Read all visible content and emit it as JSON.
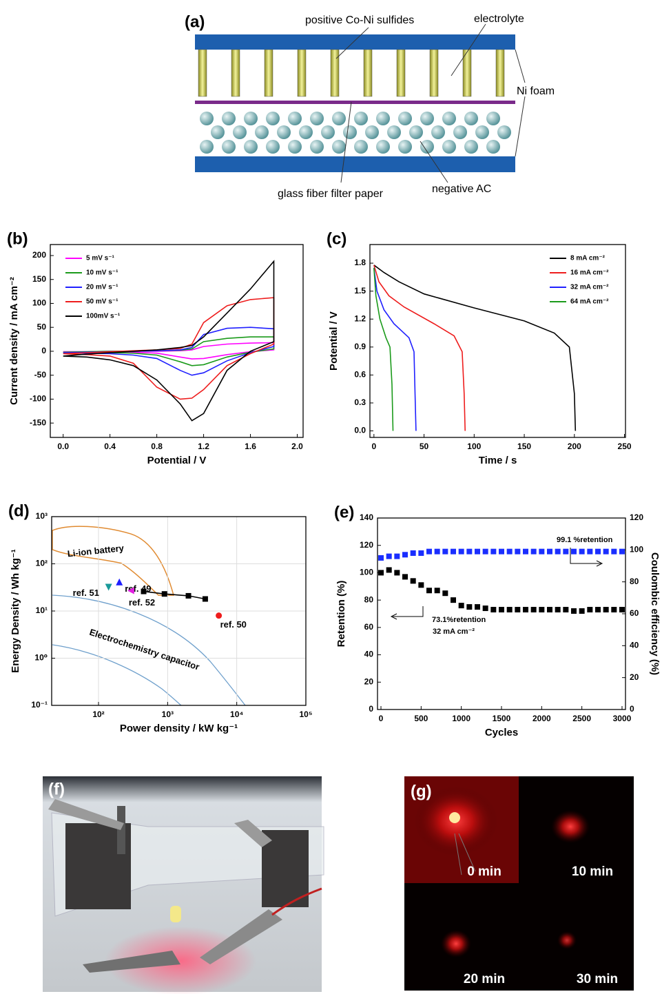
{
  "diagram": {
    "label": "(a)",
    "annotations": [
      "positive Co-Ni sulfides",
      "electrolyte",
      "Ni foam",
      "glass fiber filter paper",
      "negative AC"
    ]
  },
  "chart_data": [
    {
      "type": "line",
      "label": "(b)",
      "xlabel": "Potential / V",
      "ylabel": "Current density / mA cm⁻²",
      "x": [
        0,
        0.2,
        0.4,
        0.6,
        0.8,
        1.0,
        1.1,
        1.2,
        1.4,
        1.6,
        1.8,
        1.8,
        1.6,
        1.4,
        1.2,
        1.1,
        1.0,
        0.8,
        0.6,
        0.4,
        0.2,
        0
      ],
      "xlim": [
        -0.11,
        2.05
      ],
      "xticks": [
        {
          "value": 0,
          "label": "0.0"
        },
        0.4,
        0.8,
        1.2,
        1.6,
        {
          "value": 2,
          "label": "2.0"
        }
      ],
      "ylim": [
        -180,
        223
      ],
      "yticks": [
        -150,
        -100,
        -50,
        0,
        50,
        100,
        150,
        200
      ],
      "legend": "upper left",
      "series": [
        {
          "name": "5  mV s⁻¹",
          "color": "#ff00ff",
          "values": [
            -1,
            -1,
            0,
            0,
            0,
            1,
            3,
            10,
            15,
            17,
            18,
            3,
            -1,
            -7,
            -15,
            -16,
            -12,
            -4,
            -2,
            -1,
            -1,
            -1
          ]
        },
        {
          "name": "10 mV s⁻¹",
          "color": "#1a9a1a",
          "values": [
            -2,
            -1,
            0,
            0,
            1,
            2,
            5,
            20,
            27,
            30,
            30,
            5,
            -2,
            -12,
            -28,
            -30,
            -22,
            -8,
            -4,
            -3,
            -2,
            -2
          ]
        },
        {
          "name": "20 mV s⁻¹",
          "color": "#1f1fff",
          "values": [
            -3,
            -2,
            -1,
            0,
            1,
            3,
            8,
            35,
            48,
            50,
            47,
            10,
            -3,
            -20,
            -45,
            -50,
            -40,
            -15,
            -8,
            -5,
            -4,
            -3
          ]
        },
        {
          "name": "50 mV s⁻¹",
          "color": "#ee1c1c",
          "values": [
            -5,
            -3,
            -1,
            1,
            3,
            6,
            15,
            60,
            95,
            108,
            112,
            15,
            -5,
            -30,
            -80,
            -98,
            -100,
            -75,
            -25,
            -10,
            -7,
            -5
          ]
        },
        {
          "name": "100mV s⁻¹",
          "color": "#000000",
          "values": [
            -10,
            -6,
            -3,
            0,
            3,
            8,
            12,
            30,
            80,
            130,
            188,
            20,
            0,
            -40,
            -130,
            -145,
            -110,
            -60,
            -30,
            -18,
            -12,
            -10
          ]
        }
      ]
    },
    {
      "type": "line",
      "label": "(c)",
      "xlabel": "Time / s",
      "ylabel": "Potential / V",
      "xlim": [
        -4,
        251
      ],
      "xticks": [
        0,
        50,
        100,
        150,
        200,
        250
      ],
      "ylim": [
        -0.07,
        2.0
      ],
      "yticks": [
        {
          "value": 0,
          "label": "0.0"
        },
        0.3,
        0.6,
        0.9,
        1.2,
        1.5,
        1.8
      ],
      "legend": "upper right",
      "series": [
        {
          "name": "8  mA cm⁻²",
          "color": "#000000",
          "x": [
            0,
            10,
            25,
            50,
            100,
            150,
            180,
            195,
            200,
            201
          ],
          "values": [
            1.78,
            1.7,
            1.6,
            1.47,
            1.32,
            1.18,
            1.05,
            0.9,
            0.4,
            0
          ]
        },
        {
          "name": "16 mA cm⁻²",
          "color": "#ee1c1c",
          "x": [
            0,
            5,
            15,
            30,
            60,
            80,
            88,
            90,
            91
          ],
          "values": [
            1.78,
            1.6,
            1.45,
            1.33,
            1.15,
            1.02,
            0.85,
            0.4,
            0
          ]
        },
        {
          "name": "32 mA cm⁻²",
          "color": "#1f1fff",
          "x": [
            0,
            3,
            10,
            20,
            35,
            40,
            41,
            42
          ],
          "values": [
            1.75,
            1.5,
            1.3,
            1.15,
            1.0,
            0.85,
            0.4,
            0
          ]
        },
        {
          "name": "64 mA cm⁻²",
          "color": "#1a9a1a",
          "x": [
            0,
            2,
            6,
            12,
            16,
            18,
            19
          ],
          "values": [
            1.75,
            1.45,
            1.2,
            1.0,
            0.9,
            0.5,
            0
          ]
        }
      ]
    },
    {
      "type": "scatter",
      "label": "(d)",
      "xlabel": "Power density / kW kg⁻¹",
      "ylabel": "Energy Density / Wh kg⁻¹",
      "xlog": true,
      "ylog": true,
      "grid": true,
      "xlim": [
        21,
        100000
      ],
      "xticks": [
        {
          "value": 100,
          "label": "10²"
        },
        {
          "value": 1000,
          "label": "10³"
        },
        {
          "value": 10000,
          "label": "10⁴"
        },
        {
          "value": 100000,
          "label": "10⁵"
        }
      ],
      "ylim": [
        0.1,
        1000
      ],
      "yticks": [
        {
          "value": 0.1,
          "label": "10⁻¹"
        },
        {
          "value": 1,
          "label": "10⁰"
        },
        {
          "value": 10,
          "label": "10¹"
        },
        {
          "value": 100,
          "label": "10²"
        },
        {
          "value": 1000,
          "label": "10³"
        }
      ],
      "annotations": [
        "Li-ion battery",
        "Electrochemistry capacitor"
      ],
      "series": [
        {
          "color": "#000000",
          "marker": "square",
          "line": true,
          "x": [
            450,
            900,
            2000,
            3500
          ],
          "values": [
            26,
            23,
            21,
            18
          ]
        },
        {
          "name": "ref. 49",
          "color": "#1f1fff",
          "marker": "triangle-up",
          "x": [
            200
          ],
          "values": [
            40
          ]
        },
        {
          "name": "ref. 51",
          "color": "#1a9a9a",
          "marker": "triangle-down",
          "x": [
            140
          ],
          "values": [
            33
          ]
        },
        {
          "name": "ref. 52",
          "color": "#e020e0",
          "marker": "triangle-left",
          "x": [
            300
          ],
          "values": [
            27
          ]
        },
        {
          "name": "ref. 50",
          "color": "#ee1c1c",
          "marker": "circle",
          "x": [
            5500
          ],
          "values": [
            8
          ]
        }
      ]
    },
    {
      "type": "scatter",
      "label": "(e)",
      "xlabel": "Cycles",
      "ylabel": "Retention (%)",
      "y2label": "Coulombic efficiency (%)",
      "x": [
        0,
        100,
        200,
        300,
        400,
        500,
        600,
        700,
        800,
        900,
        1000,
        1100,
        1200,
        1300,
        1400,
        1500,
        1600,
        1700,
        1800,
        1900,
        2000,
        2100,
        2200,
        2300,
        2400,
        2500,
        2600,
        2700,
        2800,
        2900,
        3000
      ],
      "xlim": [
        -43,
        3043
      ],
      "xticks": [
        0,
        500,
        1000,
        1500,
        2000,
        2500,
        3000
      ],
      "ylim": [
        0,
        140
      ],
      "yticks": [
        0,
        20,
        40,
        60,
        80,
        100,
        120,
        140
      ],
      "y2lim": [
        0,
        120
      ],
      "y2ticks": [
        0,
        20,
        40,
        60,
        80,
        100,
        120
      ],
      "annotations": [
        "99.1 %retention",
        "73.1%retention",
        "32 mA cm⁻²"
      ],
      "series": [
        {
          "color": "#000000",
          "marker": "square",
          "values": [
            100,
            102,
            100,
            97,
            94,
            91,
            87,
            87,
            85,
            80,
            76,
            75,
            75,
            74,
            73,
            73,
            73,
            73,
            73,
            73,
            73,
            73,
            73,
            73,
            72,
            72,
            73,
            73,
            73,
            73,
            73
          ]
        },
        {
          "color": "#1a2eff",
          "marker": "square",
          "axis": "y2",
          "values": [
            95,
            96,
            96,
            97,
            98,
            98,
            99,
            99,
            99,
            99,
            99,
            99,
            99,
            99,
            99,
            99,
            99,
            99,
            99,
            99,
            99,
            99,
            99,
            99,
            99,
            99,
            99,
            99,
            99,
            99,
            99
          ]
        }
      ]
    }
  ],
  "photos": [
    {
      "label": "(f)"
    },
    {
      "label": "(g)",
      "captions": [
        "0 min",
        "10 min",
        "20 min",
        "30 min"
      ]
    }
  ]
}
